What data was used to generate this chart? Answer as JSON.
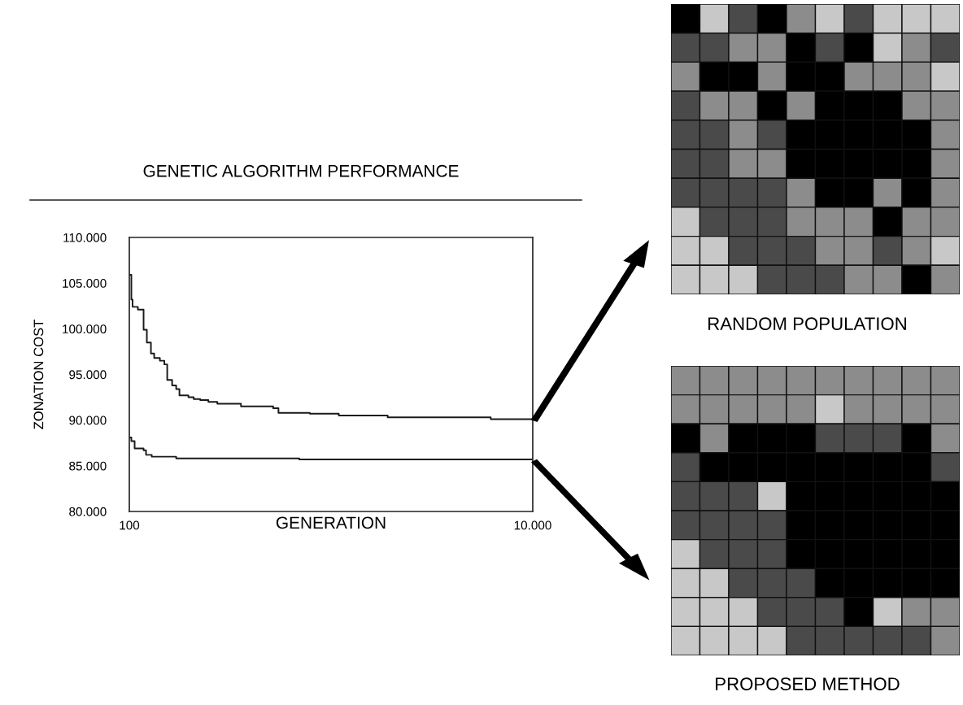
{
  "chart_data": [
    {
      "type": "step",
      "title": "GENETIC ALGORITHM PERFORMANCE",
      "xlabel": "GENERATION",
      "ylabel": "ZONATION COST",
      "xlim": [
        100,
        10000
      ],
      "xticks": [
        {
          "value": 100,
          "label": "100"
        },
        {
          "value": 10000,
          "label": "10.000"
        }
      ],
      "ylim": [
        80000,
        110000
      ],
      "yticks": [
        {
          "value": 80000,
          "label": "80.000"
        },
        {
          "value": 85000,
          "label": "85.000"
        },
        {
          "value": 90000,
          "label": "90.000"
        },
        {
          "value": 95000,
          "label": "95.000"
        },
        {
          "value": 100000,
          "label": "100.000"
        },
        {
          "value": 105000,
          "label": "105.000"
        },
        {
          "value": 110000,
          "label": "110.000"
        }
      ],
      "grid": false,
      "series": [
        {
          "color": "#1a1a1a",
          "x": [
            110,
            150,
            180,
            310,
            450,
            530,
            630,
            710,
            850,
            960,
            1030,
            1150,
            1250,
            1330,
            1550,
            1680,
            1840,
            2040,
            2260,
            2840,
            3630,
            3760,
            4530,
            5240,
            6440,
            8970,
            10000
          ],
          "values": [
            105900,
            103200,
            102400,
            102100,
            99900,
            98500,
            97300,
            96800,
            96500,
            96100,
            94400,
            93800,
            93400,
            92700,
            92500,
            92300,
            92200,
            92000,
            91800,
            91500,
            91300,
            90800,
            90700,
            90500,
            90300,
            90100,
            90100
          ]
        },
        {
          "color": "#1a1a1a",
          "x": [
            110,
            150,
            230,
            450,
            510,
            650,
            1250,
            4270,
            10000
          ],
          "values": [
            88100,
            87700,
            86900,
            86700,
            86200,
            86000,
            85800,
            85700,
            85700
          ]
        }
      ]
    },
    {
      "type": "other",
      "title": "RANDOM POPULATION"
    },
    {
      "type": "other",
      "title": "PROPOSED METHOD"
    }
  ]
}
